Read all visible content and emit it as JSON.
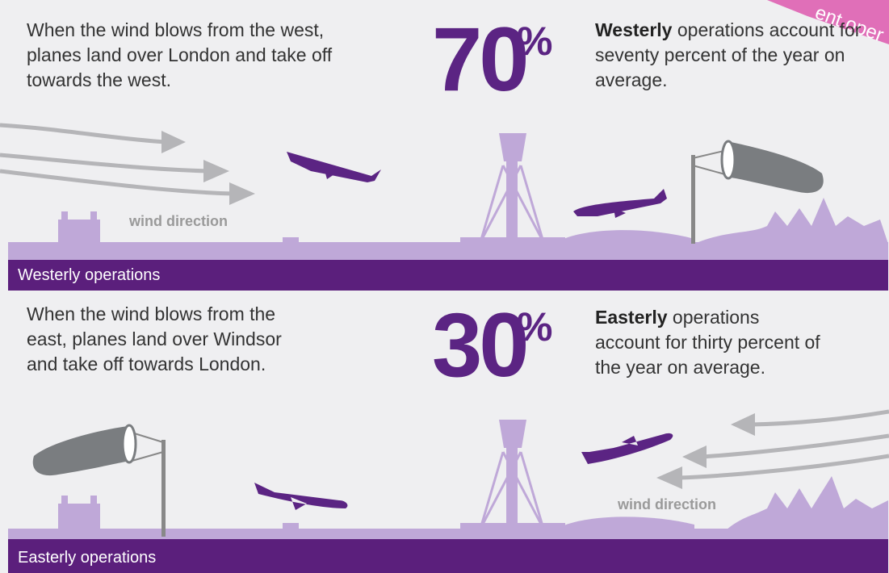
{
  "corner_label": "ent oper",
  "panels": [
    {
      "description": "When the wind blows from the west, planes land over London and take off towards the west.",
      "figure": "70",
      "figure_unit": "%",
      "stat_bold": "Westerly",
      "stat_text": "operations account for seventy percent of the year on average.",
      "wind_label": "wind direction",
      "banner": "Westerly operations"
    },
    {
      "description": "When the wind blows from the east, planes land over Windsor and take off towards London.",
      "figure": "30",
      "figure_unit": "%",
      "stat_bold": "Easterly",
      "stat_text": "operations account for thirty percent of the year on average.",
      "wind_label": "wind direction",
      "banner": "Easterly operations"
    }
  ]
}
